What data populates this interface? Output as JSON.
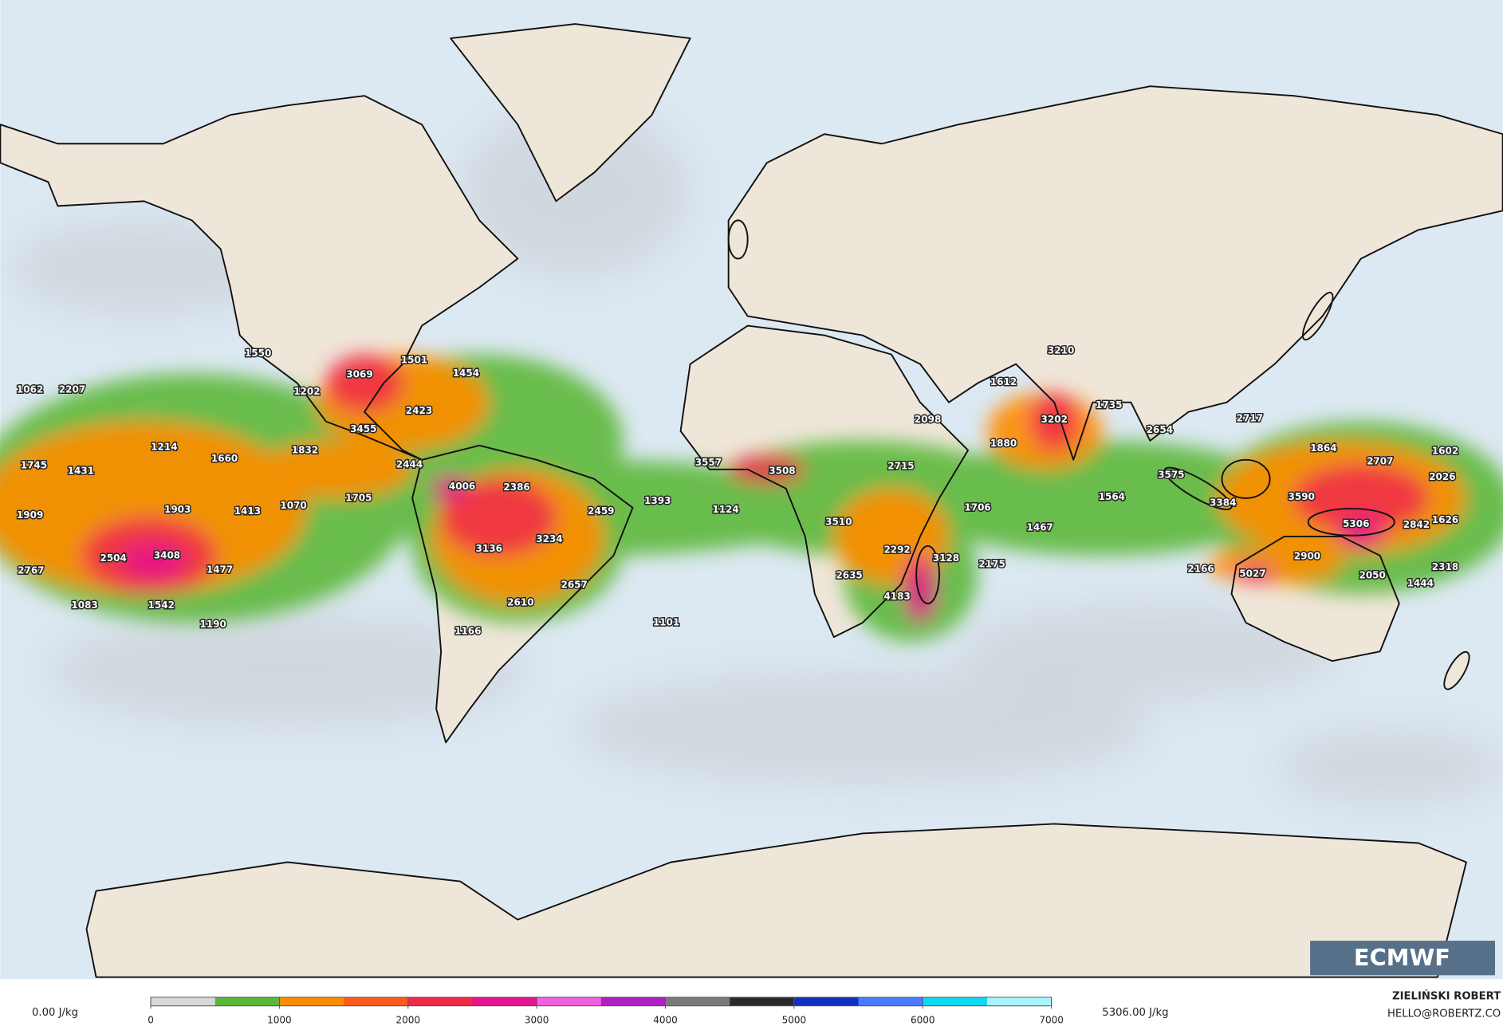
{
  "map": {
    "labels": [
      1062,
      2207,
      1550,
      1202,
      3069,
      1501,
      1454,
      2423,
      3455,
      1214,
      1660,
      1832,
      2444,
      1745,
      1431,
      1705,
      1070,
      1413,
      1903,
      1909,
      4006,
      2386,
      2504,
      3408,
      1477,
      2767,
      1083,
      1542,
      1190,
      3136,
      3234,
      2459,
      1393,
      1124,
      2657,
      2610,
      1166,
      1101,
      3557,
      3508,
      2715,
      3510,
      2292,
      3128,
      2635,
      4183,
      2175,
      1706,
      1467,
      1564,
      2098,
      1612,
      1880,
      3202,
      3210,
      1735,
      2717,
      2654,
      3575,
      3384,
      3590,
      1864,
      2707,
      1602,
      2026,
      5306,
      2842,
      1626,
      2318,
      2900,
      2166,
      5027,
      2050,
      1444
    ],
    "logo": "ECMWF"
  },
  "colorbar": {
    "min_label": "0.00 J/kg",
    "max_label": "5306.00 J/kg",
    "lim": [
      0,
      7000
    ],
    "ticks": [
      0,
      1000,
      2000,
      3000,
      4000,
      5000,
      6000,
      7000
    ],
    "colors": [
      "#d8d8d8",
      "#5cb83a",
      "#ff8c00",
      "#ff5a1a",
      "#f0284a",
      "#e6148c",
      "#f060e0",
      "#b020c0",
      "#7a7a7a",
      "#2a2a2a",
      "#1030c0",
      "#4a7aff",
      "#10d8f0",
      "#a8f4ff"
    ]
  },
  "credit": {
    "author": "ZIELIŃSKI ROBERT",
    "email": "HELLO@ROBERTZ.CO"
  }
}
